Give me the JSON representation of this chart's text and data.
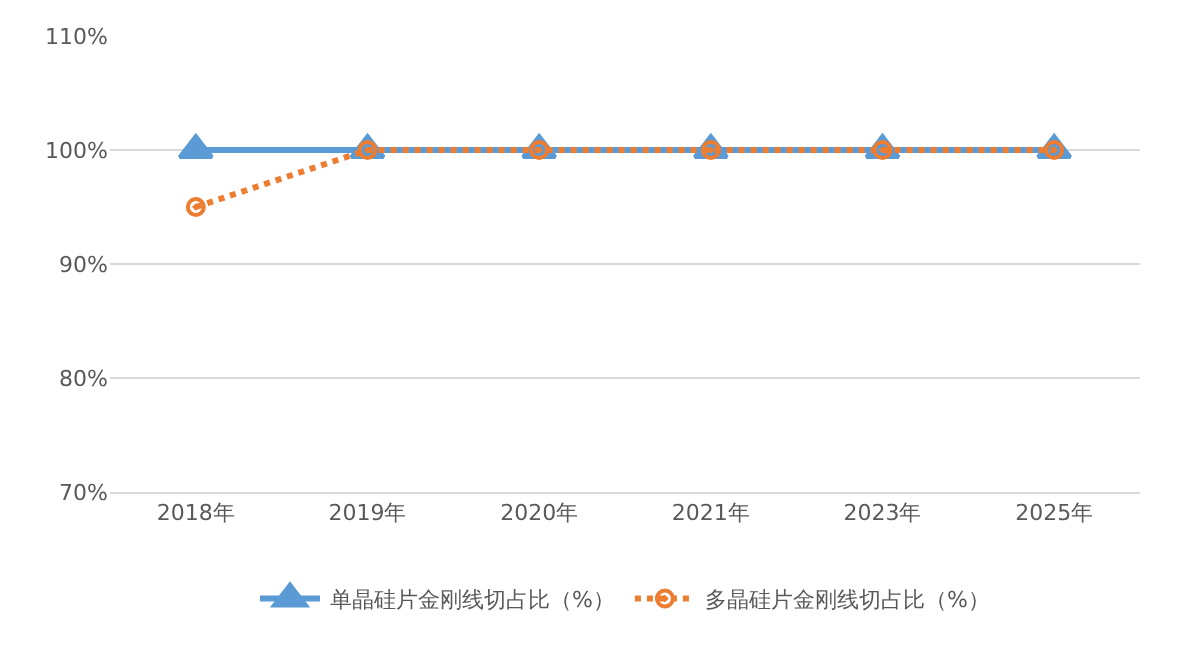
{
  "chart_data": {
    "type": "line",
    "categories": [
      "2018年",
      "2019年",
      "2020年",
      "2021年",
      "2023年",
      "2025年"
    ],
    "series": [
      {
        "name": "单晶硅片金刚线切占比（%）",
        "color": "#5b9bd5",
        "values": [
          100,
          100,
          100,
          100,
          100,
          100
        ],
        "marker": "triangle",
        "line_style": "solid"
      },
      {
        "name": "多晶硅片金刚线切占比（%）",
        "color": "#ed7d31",
        "values": [
          95,
          100,
          100,
          100,
          100,
          100
        ],
        "marker": "circle",
        "line_style": "dotted"
      }
    ],
    "ylim": [
      70,
      110
    ],
    "yticks": [
      {
        "value": 70,
        "label": "70%"
      },
      {
        "value": 80,
        "label": "80%"
      },
      {
        "value": 90,
        "label": "90%"
      },
      {
        "value": 100,
        "label": "100%"
      },
      {
        "value": 110,
        "label": "110%"
      }
    ],
    "grid": "y",
    "legend": "bottom"
  }
}
